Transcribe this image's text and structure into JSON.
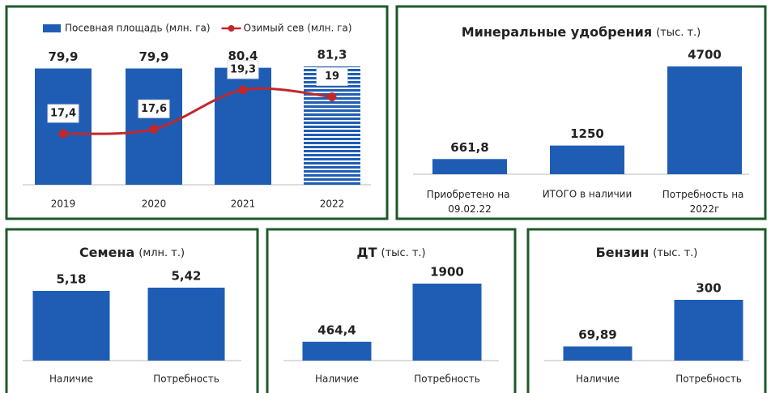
{
  "chart_data": [
    {
      "type": "bar",
      "categories": [
        "2019",
        "2020",
        "2021",
        "2022"
      ],
      "series": [
        {
          "name": "Посевная площадь (млн. га)",
          "type": "bar",
          "color": "#1f5db5",
          "values": [
            79.9,
            79.9,
            80.4,
            81.3
          ],
          "value_labels": [
            "79,9",
            "79,9",
            "80,4",
            "81,3"
          ],
          "striped": [
            false,
            false,
            false,
            true
          ]
        },
        {
          "name": "Озимый сев (млн. га)",
          "type": "line",
          "color": "#c0282d",
          "values": [
            17.4,
            17.6,
            19.3,
            19
          ],
          "value_labels": [
            "17,4",
            "17,6",
            "19,3",
            "19"
          ]
        }
      ]
    },
    {
      "type": "bar",
      "title": "Минеральные удобрения",
      "title_unit": "(тыс. т.)",
      "categories": [
        "Приобретено на 09.02.22",
        "ИТОГО в наличии",
        "Потребность на 2022г"
      ],
      "values": [
        661.8,
        1250,
        4700
      ],
      "value_labels": [
        "661,8",
        "1250",
        "4700"
      ],
      "color": "#1f5db5"
    },
    {
      "type": "bar",
      "title": "Семена",
      "title_unit": "(млн. т.)",
      "categories": [
        "Наличие",
        "Потребность"
      ],
      "values": [
        5.18,
        5.42
      ],
      "value_labels": [
        "5,18",
        "5,42"
      ],
      "color": "#1f5db5"
    },
    {
      "type": "bar",
      "title": "ДТ",
      "title_unit": "(тыс. т.)",
      "categories": [
        "Наличие",
        "Потребность"
      ],
      "values": [
        464.4,
        1900
      ],
      "value_labels": [
        "464,4",
        "1900"
      ],
      "color": "#1f5db5"
    },
    {
      "type": "bar",
      "title": "Бензин",
      "title_unit": "(тыс. т.)",
      "categories": [
        "Наличие",
        "Потребность"
      ],
      "values": [
        69.89,
        300
      ],
      "value_labels": [
        "69,89",
        "300"
      ],
      "color": "#1f5db5"
    }
  ]
}
